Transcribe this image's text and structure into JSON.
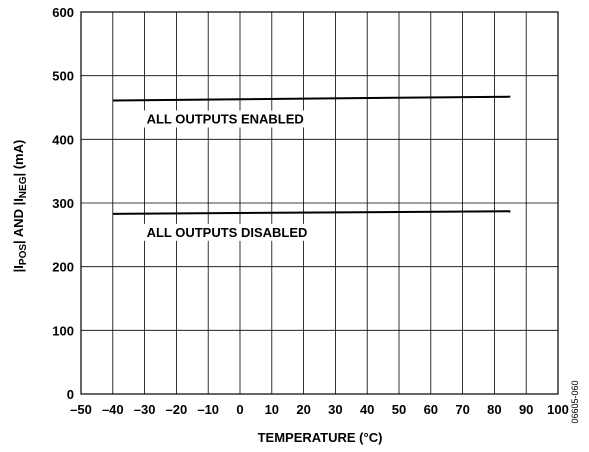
{
  "chart_data": {
    "type": "line",
    "xlabel": "TEMPERATURE (°C)",
    "ylabel": {
      "prefix": "|I",
      "sub1": "POS",
      "mid": "| AND |I",
      "sub2": "NEG",
      "suffix": "| (mA)"
    },
    "xlim": [
      -50,
      100
    ],
    "ylim": [
      0,
      600
    ],
    "x_ticks": [
      -50,
      -40,
      -30,
      -20,
      -10,
      0,
      10,
      20,
      30,
      40,
      50,
      60,
      70,
      80,
      90,
      100
    ],
    "x_tick_labels": [
      "–50",
      "–40",
      "–30",
      "–20",
      "–10",
      "0",
      "10",
      "20",
      "30",
      "40",
      "50",
      "60",
      "70",
      "80",
      "90",
      "100"
    ],
    "y_ticks": [
      0,
      100,
      200,
      300,
      400,
      500,
      600
    ],
    "y_tick_labels": [
      "0",
      "100",
      "200",
      "300",
      "400",
      "500",
      "600"
    ],
    "x_grid_step": 10,
    "y_grid_step": 100,
    "grid": true,
    "series": [
      {
        "name": "ALL OUTPUTS ENABLED",
        "x": [
          -40,
          85
        ],
        "y": [
          461,
          467
        ]
      },
      {
        "name": "ALL OUTPUTS DISABLED",
        "x": [
          -40,
          85
        ],
        "y": [
          283,
          287
        ]
      }
    ],
    "figure_id": "06605-060",
    "color": "#000000"
  }
}
